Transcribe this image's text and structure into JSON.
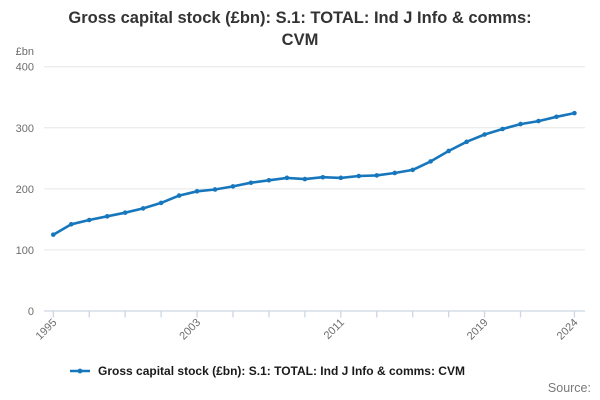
{
  "header": {
    "title": "Gross capital stock (£bn): S.1: TOTAL: Ind J Info & comms: CVM",
    "title_lines": [
      "Gross capital stock (£bn): S.1: TOTAL: Ind J Info & comms:",
      "CVM"
    ]
  },
  "chart_data": {
    "type": "line",
    "title": "Gross capital stock (£bn): S.1: TOTAL: Ind J Info & comms: CVM",
    "ylabel": "£bn",
    "xlabel": "",
    "ylim": [
      0,
      400
    ],
    "y_ticks": [
      0,
      100,
      200,
      300,
      400
    ],
    "x_ticks": [
      1995,
      1997,
      1999,
      2001,
      2003,
      2005,
      2007,
      2009,
      2011,
      2013,
      2015,
      2017,
      2019,
      2021,
      2024
    ],
    "x_labeled_ticks": [
      1995,
      2003,
      2011,
      2019,
      2024
    ],
    "grid": "horizontal",
    "legend_position": "bottom",
    "x": [
      1995,
      1996,
      1997,
      1998,
      1999,
      2000,
      2001,
      2002,
      2003,
      2004,
      2005,
      2006,
      2007,
      2008,
      2009,
      2010,
      2011,
      2012,
      2013,
      2014,
      2015,
      2016,
      2017,
      2018,
      2019,
      2020,
      2021,
      2022,
      2023,
      2024
    ],
    "series": [
      {
        "name": "Gross capital stock (£bn): S.1: TOTAL: Ind J Info & comms: CVM",
        "color": "#1777bd",
        "values": [
          125,
          142,
          149,
          155,
          161,
          168,
          177,
          189,
          196,
          199,
          204,
          210,
          214,
          218,
          216,
          219,
          218,
          221,
          222,
          226,
          231,
          245,
          262,
          277,
          289,
          298,
          306,
          311,
          318,
          324
        ]
      }
    ]
  },
  "legend": {
    "label": "Gross capital stock (£bn): S.1: TOTAL: Ind J Info & comms: CVM"
  },
  "footer": {
    "source_label": "Source:"
  },
  "colors": {
    "line": "#1777bd",
    "gridline": "#e6e6e6",
    "axis": "#ccd6e4",
    "tick_text": "#6d6d6d",
    "title_text": "#333333",
    "source_text": "#7a7a7a"
  }
}
